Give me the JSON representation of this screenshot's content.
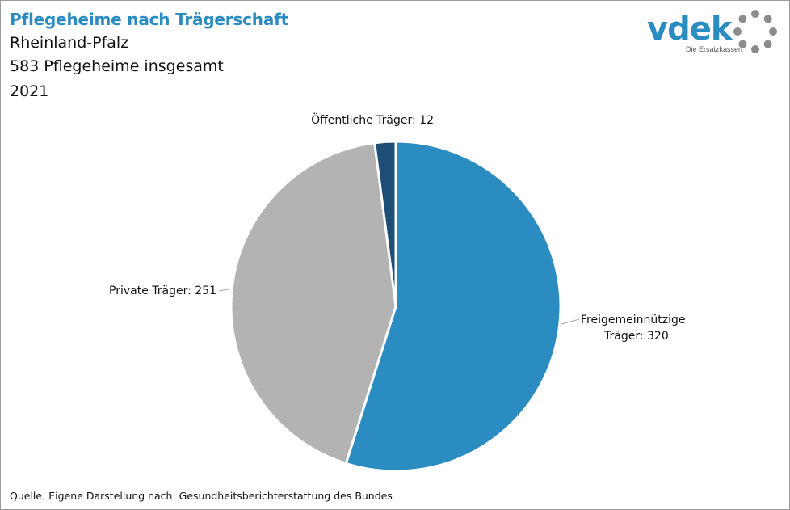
{
  "header": {
    "title": "Pflegeheime nach Trägerschaft",
    "subtitle_1": "Rheinland-Pfalz",
    "subtitle_2": "583 Pflegeheime insgesamt",
    "subtitle_3": "2021"
  },
  "logo": {
    "word": "vdek",
    "tagline": "Die Ersatzkassen",
    "icon": "dotted-ring-icon"
  },
  "footer": {
    "source": "Quelle: Eigene Darstellung nach: Gesundheitsberichterstattung  des Bundes"
  },
  "colors": {
    "title": "#2b8cc1",
    "freigemeinnuetzig": "#2b8cc1",
    "private": "#b3b3b3",
    "oeffentlich": "#1d4e78"
  },
  "chart_data": {
    "type": "pie",
    "total": 583,
    "slices": [
      {
        "label_lines": [
          "Freigemeinnützige",
          "Träger: 320"
        ],
        "value": 320,
        "color": "#2b8cc1"
      },
      {
        "label_lines": [
          "Private Träger: 251"
        ],
        "value": 251,
        "color": "#b3b3b3"
      },
      {
        "label_lines": [
          "Öffentliche Träger: 12"
        ],
        "value": 12,
        "color": "#1d4e78"
      }
    ],
    "start": "12 o'clock",
    "direction": "clockwise"
  }
}
